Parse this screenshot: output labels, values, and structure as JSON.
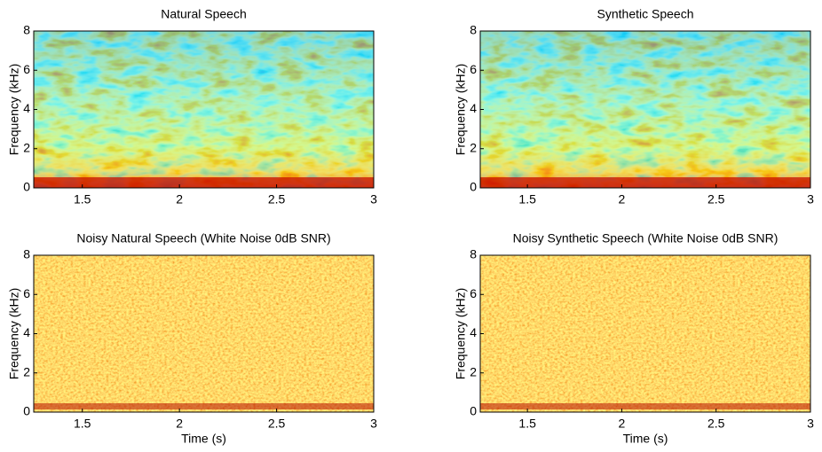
{
  "chart_data": [
    {
      "type": "spectrogram",
      "title": "Natural Speech",
      "ylabel": "Frequency (kHz)",
      "xlim": [
        1.25,
        3
      ],
      "ylim": [
        0,
        8
      ],
      "xticks": [
        1.5,
        2,
        2.5,
        3
      ],
      "yticks": [
        0,
        2,
        4,
        6,
        8
      ]
    },
    {
      "type": "spectrogram",
      "title": "Synthetic Speech",
      "ylabel": "Frequency (kHz)",
      "xlim": [
        1.25,
        3
      ],
      "ylim": [
        0,
        8
      ],
      "xticks": [
        1.5,
        2,
        2.5,
        3
      ],
      "yticks": [
        0,
        2,
        4,
        6,
        8
      ]
    },
    {
      "type": "spectrogram",
      "title": "Noisy Natural Speech (White Noise 0dB SNR)",
      "xlabel": "Time (s)",
      "ylabel": "Frequency (kHz)",
      "xlim": [
        1.25,
        3
      ],
      "ylim": [
        0,
        8
      ],
      "xticks": [
        1.5,
        2,
        2.5,
        3
      ],
      "yticks": [
        0,
        2,
        4,
        6,
        8
      ]
    },
    {
      "type": "spectrogram",
      "title": "Noisy Synthetic Speech (White Noise 0dB SNR)",
      "xlabel": "Time (s)",
      "ylabel": "Frequency (kHz)",
      "xlim": [
        1.25,
        3
      ],
      "ylim": [
        0,
        8
      ],
      "xticks": [
        1.5,
        2,
        2.5,
        3
      ],
      "yticks": [
        0,
        2,
        4,
        6,
        8
      ]
    }
  ]
}
